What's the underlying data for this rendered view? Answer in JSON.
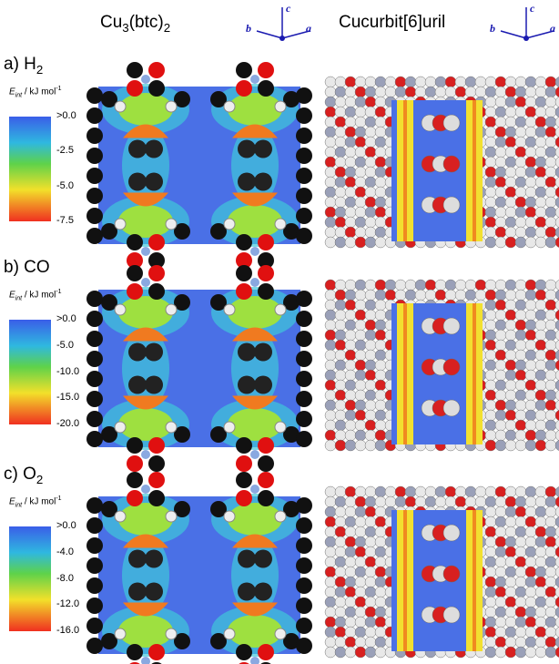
{
  "columns": [
    {
      "parts": [
        {
          "text": "Cu"
        },
        {
          "text": "3",
          "sub": true
        },
        {
          "text": "(btc)"
        },
        {
          "text": "2",
          "sub": true
        }
      ]
    },
    {
      "parts": [
        {
          "text": "Cucurbit[6]uril"
        }
      ]
    }
  ],
  "axes": [
    {
      "labels": [
        "c",
        "b",
        "a"
      ]
    },
    {
      "labels": [
        "c",
        "b",
        "a"
      ]
    }
  ],
  "rows": [
    {
      "label": [
        {
          "text": "a) H"
        },
        {
          "text": "2",
          "sub": true
        }
      ],
      "colorbar": {
        "title": [
          {
            "text": "E",
            "italic": true
          },
          {
            "text": "int",
            "italic": true,
            "sub": true
          },
          {
            "text": " / kJ mol"
          },
          {
            "text": "-1",
            "sup": true
          }
        ],
        "ticks": [
          ">0.0",
          "-2.5",
          "-5.0",
          "-7.5"
        ]
      }
    },
    {
      "label": [
        {
          "text": "b) CO"
        }
      ],
      "colorbar": {
        "title": [
          {
            "text": "E",
            "italic": true
          },
          {
            "text": "int",
            "italic": true,
            "sub": true
          },
          {
            "text": " / kJ mol"
          },
          {
            "text": "-1",
            "sup": true
          }
        ],
        "ticks": [
          ">0.0",
          "-5.0",
          "-10.0",
          "-15.0",
          "-20.0"
        ]
      }
    },
    {
      "label": [
        {
          "text": "c) O"
        },
        {
          "text": "2",
          "sub": true
        }
      ],
      "colorbar": {
        "title": [
          {
            "text": "E",
            "italic": true
          },
          {
            "text": "int",
            "italic": true,
            "sub": true
          },
          {
            "text": " / kJ mol"
          },
          {
            "text": "-1",
            "sup": true
          }
        ],
        "ticks": [
          ">0.0",
          "-4.0",
          "-8.0",
          "-12.0",
          "-16.0"
        ]
      }
    }
  ]
}
